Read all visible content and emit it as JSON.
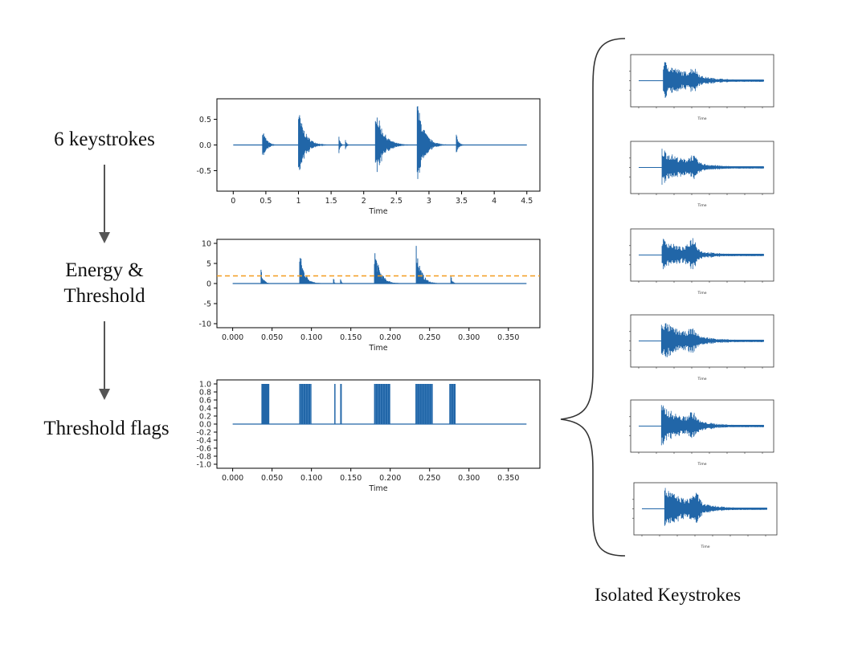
{
  "labels": {
    "step1": "6 keystrokes",
    "step2_line1": "Energy &",
    "step2_line2": "Threshold",
    "step3": "Threshold flags",
    "isolated": "Isolated Keystrokes"
  },
  "colors": {
    "signal": "#2166a8",
    "threshold": "#f39c1f",
    "axis": "#000000",
    "arrow": "#555555"
  },
  "chart_data": [
    {
      "id": "waveform",
      "type": "line",
      "xlabel": "Time",
      "xticks": [
        "0",
        "0.5",
        "1",
        "1.5",
        "2",
        "2.5",
        "3",
        "3.5",
        "4",
        "4.5"
      ],
      "yticks": [
        "0.5",
        "0.0",
        "-0.5"
      ],
      "xlim": [
        -0.25,
        4.7
      ],
      "ylim": [
        -0.9,
        0.9
      ],
      "bursts": [
        {
          "t": 0.45,
          "amp": 0.35,
          "dur": 0.25
        },
        {
          "t": 1.0,
          "amp": 0.72,
          "dur": 0.45
        },
        {
          "t": 1.62,
          "amp": 0.16,
          "dur": 0.1
        },
        {
          "t": 1.72,
          "amp": 0.14,
          "dur": 0.08
        },
        {
          "t": 2.18,
          "amp": 0.82,
          "dur": 0.5
        },
        {
          "t": 2.82,
          "amp": 0.9,
          "dur": 0.45
        },
        {
          "t": 3.42,
          "amp": 0.22,
          "dur": 0.15
        }
      ],
      "line_range": [
        0,
        4.5
      ]
    },
    {
      "id": "energy",
      "type": "line",
      "xlabel": "Time",
      "xticks": [
        "0.000",
        "0.050",
        "0.100",
        "0.150",
        "0.200",
        "0.250",
        "0.300",
        "0.350"
      ],
      "yticks": [
        "10",
        "5",
        "0",
        "-5",
        "-10"
      ],
      "xlim": [
        -0.02,
        0.39
      ],
      "ylim": [
        -11,
        11
      ],
      "threshold": 1.9,
      "bursts": [
        {
          "t": 0.036,
          "amp": 3.8,
          "dur": 0.015
        },
        {
          "t": 0.085,
          "amp": 8.7,
          "dur": 0.03
        },
        {
          "t": 0.128,
          "amp": 1.8,
          "dur": 0.005
        },
        {
          "t": 0.137,
          "amp": 1.7,
          "dur": 0.005
        },
        {
          "t": 0.18,
          "amp": 9.5,
          "dur": 0.035
        },
        {
          "t": 0.233,
          "amp": 10.2,
          "dur": 0.03
        },
        {
          "t": 0.277,
          "amp": 2.3,
          "dur": 0.01
        }
      ],
      "line_range": [
        0,
        0.373
      ]
    },
    {
      "id": "flags",
      "type": "bar",
      "xlabel": "Time",
      "xticks": [
        "0.000",
        "0.050",
        "0.100",
        "0.150",
        "0.200",
        "0.250",
        "0.300",
        "0.350"
      ],
      "yticks": [
        "1.0",
        "0.8",
        "0.6",
        "0.4",
        "0.2",
        "0.0",
        "-0.2",
        "-0.4",
        "-0.6",
        "-0.8",
        "-1.0"
      ],
      "xlim": [
        -0.02,
        0.39
      ],
      "ylim": [
        -1.1,
        1.1
      ],
      "blocks": [
        {
          "start": 0.0365,
          "end": 0.0465
        },
        {
          "start": 0.0845,
          "end": 0.1,
          "dense": true
        },
        {
          "start": 0.129,
          "end": 0.13
        },
        {
          "start": 0.1365,
          "end": 0.1385
        },
        {
          "start": 0.1795,
          "end": 0.2,
          "dense": true
        },
        {
          "start": 0.232,
          "end": 0.254,
          "dense": true
        },
        {
          "start": 0.275,
          "end": 0.283,
          "dense": true
        }
      ],
      "line_range": [
        0,
        0.373
      ]
    }
  ],
  "thumbnails": [
    {
      "xlabel": "Time",
      "onset": 0.2,
      "amp": 0.9,
      "secondary": 0.55
    },
    {
      "xlabel": "Time",
      "onset": 0.18,
      "amp": 0.85,
      "secondary": 0.5
    },
    {
      "xlabel": "Time",
      "onset": 0.18,
      "amp": 0.75,
      "secondary": 0.95
    },
    {
      "xlabel": "Time",
      "onset": 0.17,
      "amp": 0.95,
      "secondary": 0.45
    },
    {
      "xlabel": "Time",
      "onset": 0.17,
      "amp": 0.95,
      "secondary": 0.6
    },
    {
      "xlabel": "Time",
      "onset": 0.17,
      "amp": 0.95,
      "secondary": 0.75
    }
  ]
}
